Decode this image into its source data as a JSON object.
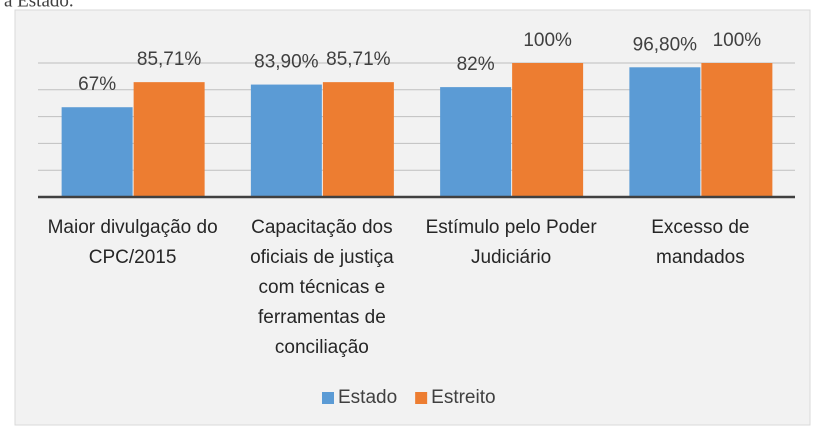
{
  "caption": "a Estado.",
  "chart_data": {
    "type": "bar",
    "categories": [
      "Maior divulgação do CPC/2015",
      "Capacitação dos oficiais de justiça com técnicas e ferramentas de conciliação",
      "Estímulo pelo Poder Judiciário",
      "Excesso de mandados"
    ],
    "series": [
      {
        "name": "Estado",
        "color": "#5b9bd5",
        "values": [
          67,
          83.9,
          82,
          96.8
        ],
        "value_labels": [
          "67%",
          "83,90%",
          "82%",
          "96,80%"
        ]
      },
      {
        "name": "Estreito",
        "color": "#ed7d31",
        "values": [
          85.71,
          85.71,
          100,
          100
        ],
        "value_labels": [
          "85,71%",
          "85,71%",
          "100%",
          "100%"
        ]
      }
    ],
    "ylim": [
      0,
      120
    ],
    "yticks": [
      0,
      20,
      40,
      60,
      80,
      100
    ],
    "grid": true,
    "legend": "bottom"
  }
}
